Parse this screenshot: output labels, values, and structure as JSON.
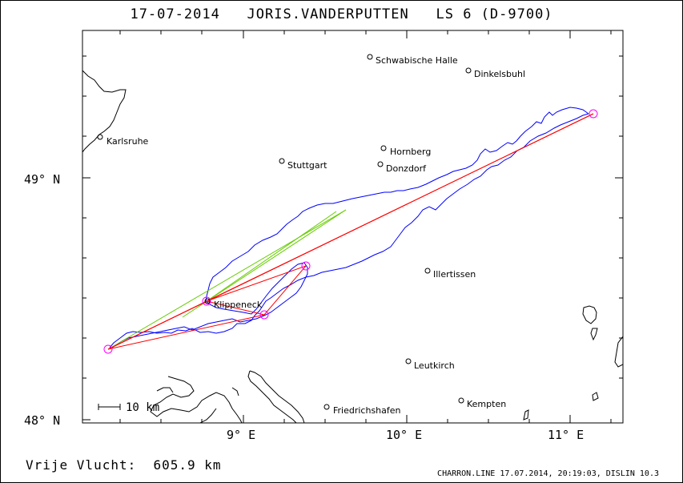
{
  "title": {
    "date": "17-07-2014",
    "pilot": "JORIS.VANDERPUTTEN",
    "glider": "LS 6 (D-9700)"
  },
  "map": {
    "lat_labels": [
      "49° N",
      "48° N"
    ],
    "lon_labels": [
      "9° E",
      "10° E",
      "11° E"
    ],
    "scale_label": "10 km",
    "cities": [
      {
        "name": "Schwabische Halle"
      },
      {
        "name": "Dinkelsbuhl"
      },
      {
        "name": "Karlsruhe"
      },
      {
        "name": "Hornberg"
      },
      {
        "name": "Stuttgart"
      },
      {
        "name": "Donzdorf"
      },
      {
        "name": "Illertissen"
      },
      {
        "name": "Klippeneck"
      },
      {
        "name": "Leutkirch"
      },
      {
        "name": "Kempten"
      },
      {
        "name": "Friedrichshafen"
      }
    ],
    "colors": {
      "track": "#0000ff",
      "task": "#ff0000",
      "alt_task": "#66cc00",
      "turnpoint": "#ff00ff",
      "coast": "#000000"
    }
  },
  "footer": {
    "distance_label": "Vrije Vlucht:",
    "distance_value": "605.9 km",
    "credit": "CHARRON.LINE 17.07.2014, 20:19:03, DISLIN 10.3"
  }
}
